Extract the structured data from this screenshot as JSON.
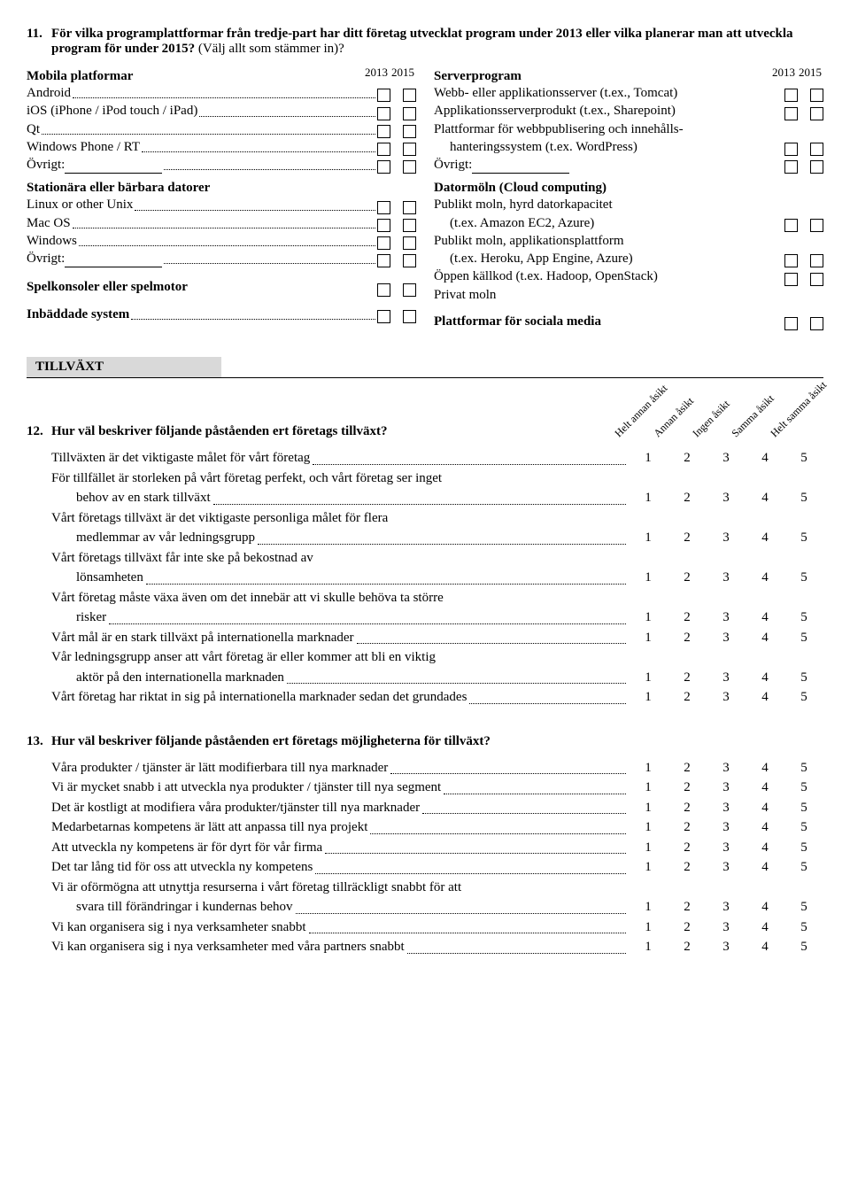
{
  "q11": {
    "num": "11.",
    "title": "För vilka programplattformar från tredje-part har ditt företag utvecklat program under 2013 eller vilka planerar man att utveckla program för under 2015?",
    "note": "(Välj allt som stämmer in)?",
    "years": [
      "2013",
      "2015"
    ],
    "left": {
      "g1": {
        "head": "Mobila platformar",
        "items": [
          "Android",
          "iOS (iPhone / iPod touch / iPad)",
          "Qt",
          "Windows Phone / RT"
        ],
        "other": "Övrigt:"
      },
      "g2": {
        "head": "Stationära eller bärbara datorer",
        "items": [
          "Linux or other Unix",
          "Mac OS",
          "Windows"
        ],
        "other": "Övrigt:"
      },
      "g3": {
        "head": "Spelkonsoler eller spelmotor"
      },
      "g4": {
        "head": "Inbäddade system"
      }
    },
    "right": {
      "g1": {
        "head": "Serverprogram",
        "items": [
          "Webb- eller applikationsserver (t.ex., Tomcat)",
          "Applikationsserverprodukt (t.ex., Sharepoint)"
        ],
        "multi": {
          "l1": "Plattformar för webbpublisering och innehålls-",
          "l2": "hanteringssystem (t.ex. WordPress)"
        },
        "other": "Övrigt:"
      },
      "g2": {
        "head": "Datormöln (Cloud computing)",
        "pairs": [
          [
            "Publikt moln, hyrd datorkapacitet",
            "(t.ex. Amazon EC2, Azure)"
          ],
          [
            "Publikt moln, applikationsplattform",
            "(t.ex. Heroku, App Engine, Azure)"
          ]
        ],
        "items": [
          "Öppen källkod (t.ex. Hadoop, OpenStack)",
          "Privat moln"
        ]
      },
      "g3": {
        "head": "Plattformar för sociala media"
      }
    }
  },
  "section_growth": "TILLVÄXT",
  "q12": {
    "num": "12.",
    "title": "Hur väl beskriver följande påståenden ert företags tillväxt?",
    "scale_labels": [
      "Helt annan åsikt",
      "Annan åsikt",
      "Ingen åsikt",
      "Samma åsikt",
      "Helt samma åsikt"
    ],
    "scale": [
      "1",
      "2",
      "3",
      "4",
      "5"
    ],
    "rows": [
      {
        "t": "Tillväxten är det viktigaste målet för vårt företag"
      },
      {
        "t": "För tillfället är storleken på vårt företag perfekt, och vårt företag ser inget",
        "c": "behov av en stark tillväxt"
      },
      {
        "t": "Vårt företags tillväxt är det viktigaste personliga målet för flera",
        "c": "medlemmar av vår ledningsgrupp"
      },
      {
        "t": "Vårt företags tillväxt får inte ske på bekostnad av",
        "c": "lönsamheten"
      },
      {
        "t": "Vårt företag måste växa även om det innebär att vi skulle behöva ta större",
        "c": "risker"
      },
      {
        "t": "Vårt mål är en stark tillväxt på internationella marknader"
      },
      {
        "t": "Vår ledningsgrupp anser att vårt företag är eller kommer att bli en viktig",
        "c": "aktör på den internationella marknaden"
      },
      {
        "t": "Vårt företag har riktat in sig på internationella marknader sedan det grundades"
      }
    ]
  },
  "q13": {
    "num": "13.",
    "title": "Hur väl beskriver följande påståenden ert företags möjligheterna för tillväxt?",
    "scale": [
      "1",
      "2",
      "3",
      "4",
      "5"
    ],
    "rows": [
      {
        "t": "Våra produkter / tjänster är lätt modifierbara till nya marknader"
      },
      {
        "t": "Vi är mycket snabb i att utveckla nya produkter / tjänster till nya segment"
      },
      {
        "t": "Det är kostligt at modifiera våra produkter/tjänster till nya marknader"
      },
      {
        "t": "Medarbetarnas kompetens är lätt att anpassa till nya projekt"
      },
      {
        "t": "Att utveckla ny kompetens är för dyrt för vår firma"
      },
      {
        "t": "Det tar lång tid för oss att utveckla ny kompetens"
      },
      {
        "t": "Vi är oförmögna att utnyttja resurserna i vårt företag tillräckligt snabbt för att",
        "c": "svara till förändringar i kundernas behov"
      },
      {
        "t": "Vi kan organisera sig i nya verksamheter snabbt"
      },
      {
        "t": "Vi kan organisera sig i nya verksamheter med våra partners snabbt"
      }
    ]
  }
}
